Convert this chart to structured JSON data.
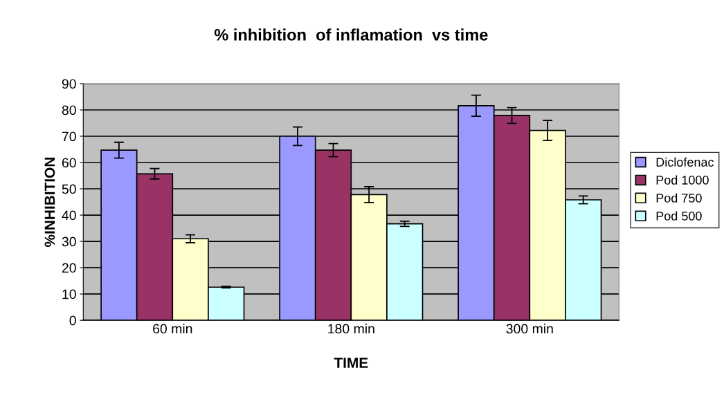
{
  "chart_data": {
    "type": "bar",
    "title": "% inhibition  of inflamation  vs time",
    "xlabel": "TIME",
    "ylabel": "%INHIBITION",
    "categories": [
      "60 min",
      "180 min",
      "300 min"
    ],
    "series": [
      {
        "name": "Diclofenac",
        "color": "#9999ff",
        "values": [
          64.7,
          70,
          81.6
        ],
        "errors": [
          3,
          3.5,
          4
        ]
      },
      {
        "name": "Pod 1000",
        "color": "#993366",
        "values": [
          55.7,
          64.7,
          77.9
        ],
        "errors": [
          2,
          2.5,
          3
        ]
      },
      {
        "name": "Pod 750",
        "color": "#ffffcc",
        "values": [
          31,
          47.8,
          72.2
        ],
        "errors": [
          1.5,
          3,
          3.8
        ]
      },
      {
        "name": "Pod 500",
        "color": "#ccffff",
        "values": [
          12.6,
          36.7,
          45.8
        ],
        "errors": [
          0.3,
          1,
          1.5
        ]
      }
    ],
    "ylim": [
      0,
      90
    ],
    "yticks": [
      0,
      10,
      20,
      30,
      40,
      50,
      60,
      70,
      80,
      90
    ],
    "grid": "y",
    "legend": "right"
  }
}
